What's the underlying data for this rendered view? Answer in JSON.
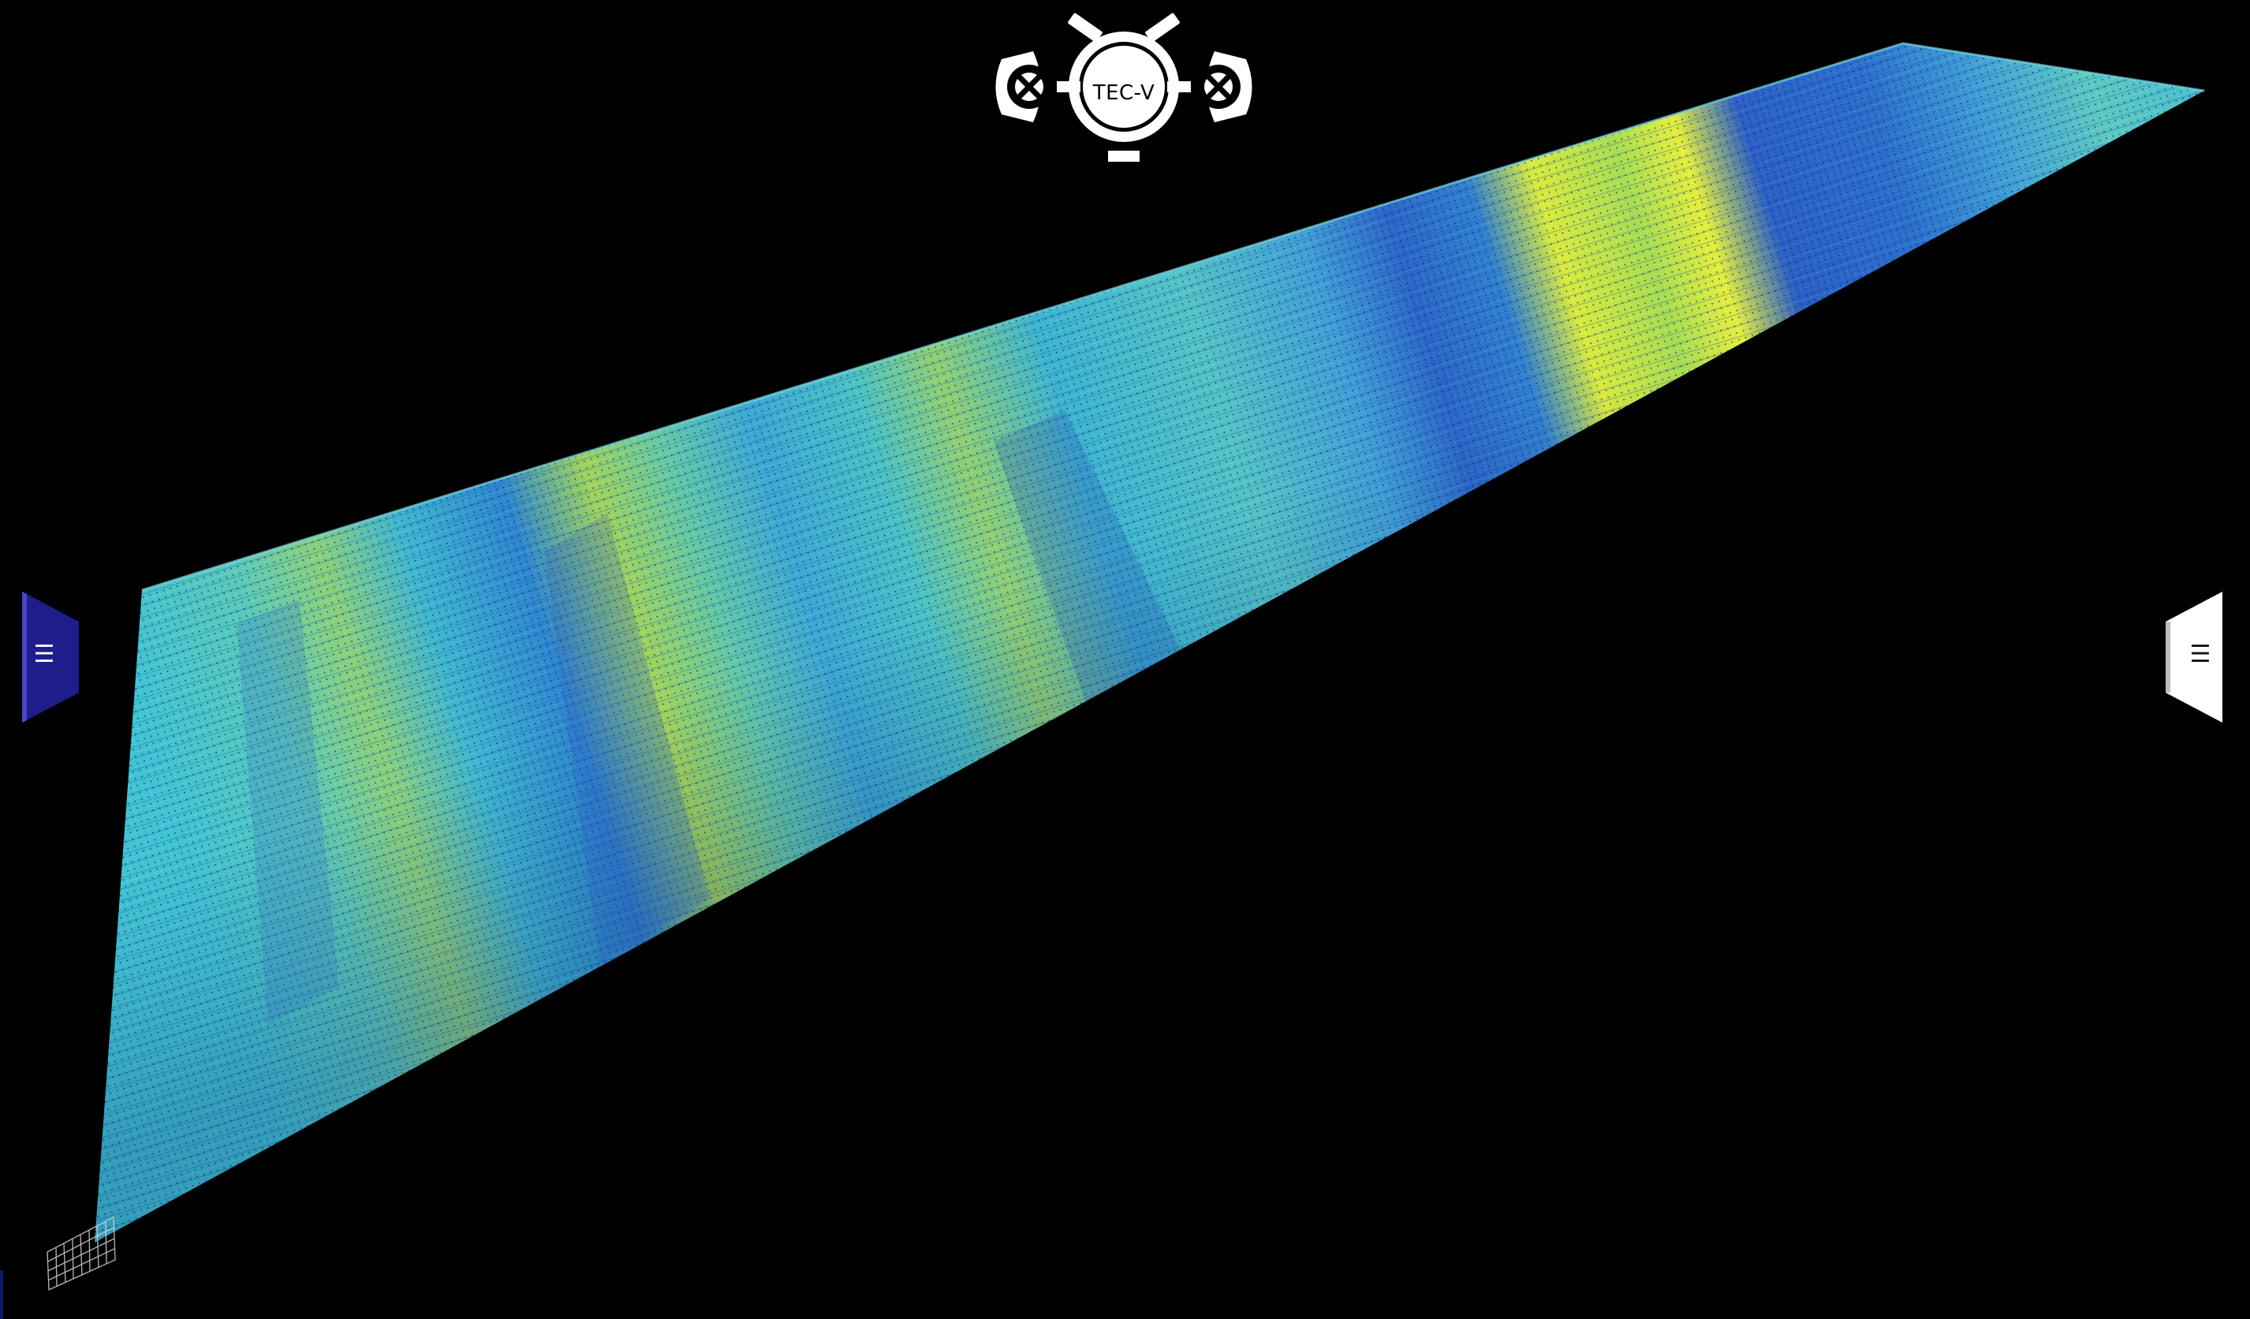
{
  "app": {
    "logo_text": "TEC-V"
  },
  "menus": {
    "left_toggle_glyph": "☰",
    "right_toggle_glyph": "☰"
  },
  "colors": {
    "background": "#000000",
    "left_tab": "#1f1d8c",
    "right_tab": "#ffffff",
    "colormap_low": "#1f3fbf",
    "colormap_mid": "#33c1d6",
    "colormap_high": "#e8f040"
  },
  "icons": {
    "left_toggle": "hamburger-menu-icon",
    "right_toggle": "hamburger-menu-icon",
    "logo": "tec-v-rover-logo",
    "minimap": "wireframe-grid-icon"
  }
}
